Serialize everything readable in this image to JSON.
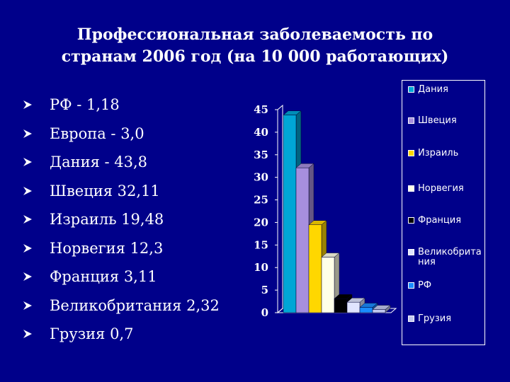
{
  "slide": {
    "title_line1": "Профессиональная заболеваемость по",
    "title_line2": "странам  2006 год (на 10 000 работающих)",
    "bullets": [
      "РФ - 1,18",
      "Европа - 3,0",
      "Дания - 43,8",
      "Швеция 32,11",
      "Израиль 19,48",
      "Норвегия 12,3",
      "Франция 3,11",
      "Великобритания 2,32",
      "Грузия 0,7"
    ]
  },
  "chart_data": {
    "type": "bar",
    "style": "3d",
    "title": "",
    "xlabel": "",
    "ylabel": "",
    "ylim": [
      0,
      45
    ],
    "yticks": [
      "0",
      "5",
      "10",
      "15",
      "20",
      "25",
      "30",
      "35",
      "40",
      "45"
    ],
    "legend_position": "right",
    "series": [
      {
        "name": "Дания",
        "value": 43.8,
        "color": "#00a6d6"
      },
      {
        "name": "Швеция",
        "value": 32.11,
        "color": "#a78fde"
      },
      {
        "name": "Израиль",
        "value": 19.48,
        "color": "#ffd700"
      },
      {
        "name": "Норвегия",
        "value": 12.3,
        "color": "#ffffe8"
      },
      {
        "name": "Франция",
        "value": 3.11,
        "color": "#000000"
      },
      {
        "name": "Великобритания",
        "value": 2.32,
        "color": "#e0e4ff"
      },
      {
        "name": "РФ",
        "value": 1.18,
        "color": "#1a8cff"
      },
      {
        "name": "Грузия",
        "value": 0.7,
        "color": "#c2c8f0"
      }
    ]
  }
}
